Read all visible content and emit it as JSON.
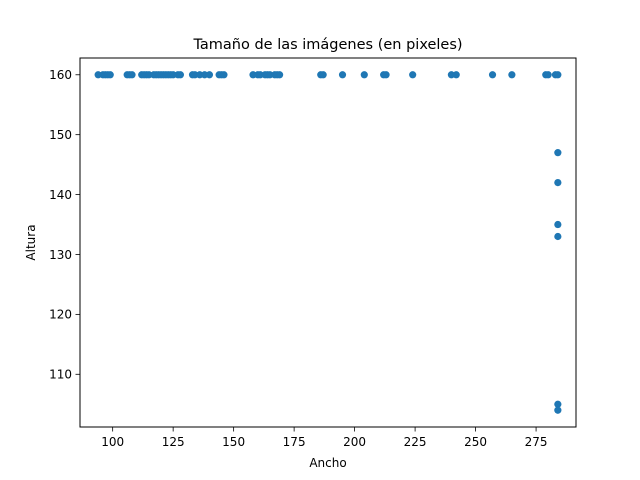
{
  "chart_data": {
    "type": "scatter",
    "title": "Tamaño de las imágenes (en pixeles)",
    "xlabel": "Ancho",
    "ylabel": "Altura",
    "xlim": [
      86.5,
      291.5
    ],
    "ylim": [
      101.2,
      162.8
    ],
    "xticks": [
      100,
      125,
      150,
      175,
      200,
      225,
      250,
      275
    ],
    "yticks": [
      110,
      120,
      130,
      140,
      150,
      160
    ],
    "grid": false,
    "color": "#1f77b4",
    "series": [
      {
        "points": [
          [
            94,
            160
          ],
          [
            96,
            160
          ],
          [
            97,
            160
          ],
          [
            98,
            160
          ],
          [
            99,
            160
          ],
          [
            106,
            160
          ],
          [
            107,
            160
          ],
          [
            108,
            160
          ],
          [
            112,
            160
          ],
          [
            113,
            160
          ],
          [
            114,
            160
          ],
          [
            115,
            160
          ],
          [
            117,
            160
          ],
          [
            118,
            160
          ],
          [
            119,
            160
          ],
          [
            120,
            160
          ],
          [
            121,
            160
          ],
          [
            122,
            160
          ],
          [
            123,
            160
          ],
          [
            124,
            160
          ],
          [
            125,
            160
          ],
          [
            127,
            160
          ],
          [
            128,
            160
          ],
          [
            133,
            160
          ],
          [
            134,
            160
          ],
          [
            136,
            160
          ],
          [
            138,
            160
          ],
          [
            140,
            160
          ],
          [
            144,
            160
          ],
          [
            145,
            160
          ],
          [
            146,
            160
          ],
          [
            158,
            160
          ],
          [
            160,
            160
          ],
          [
            161,
            160
          ],
          [
            163,
            160
          ],
          [
            164,
            160
          ],
          [
            165,
            160
          ],
          [
            167,
            160
          ],
          [
            168,
            160
          ],
          [
            169,
            160
          ],
          [
            186,
            160
          ],
          [
            187,
            160
          ],
          [
            195,
            160
          ],
          [
            204,
            160
          ],
          [
            212,
            160
          ],
          [
            213,
            160
          ],
          [
            224,
            160
          ],
          [
            240,
            160
          ],
          [
            242,
            160
          ],
          [
            257,
            160
          ],
          [
            265,
            160
          ],
          [
            279,
            160
          ],
          [
            280,
            160
          ],
          [
            283,
            160
          ],
          [
            284,
            160
          ],
          [
            284,
            147
          ],
          [
            284,
            142
          ],
          [
            284,
            135
          ],
          [
            284,
            133
          ],
          [
            284,
            105
          ],
          [
            284,
            104
          ]
        ]
      }
    ]
  }
}
